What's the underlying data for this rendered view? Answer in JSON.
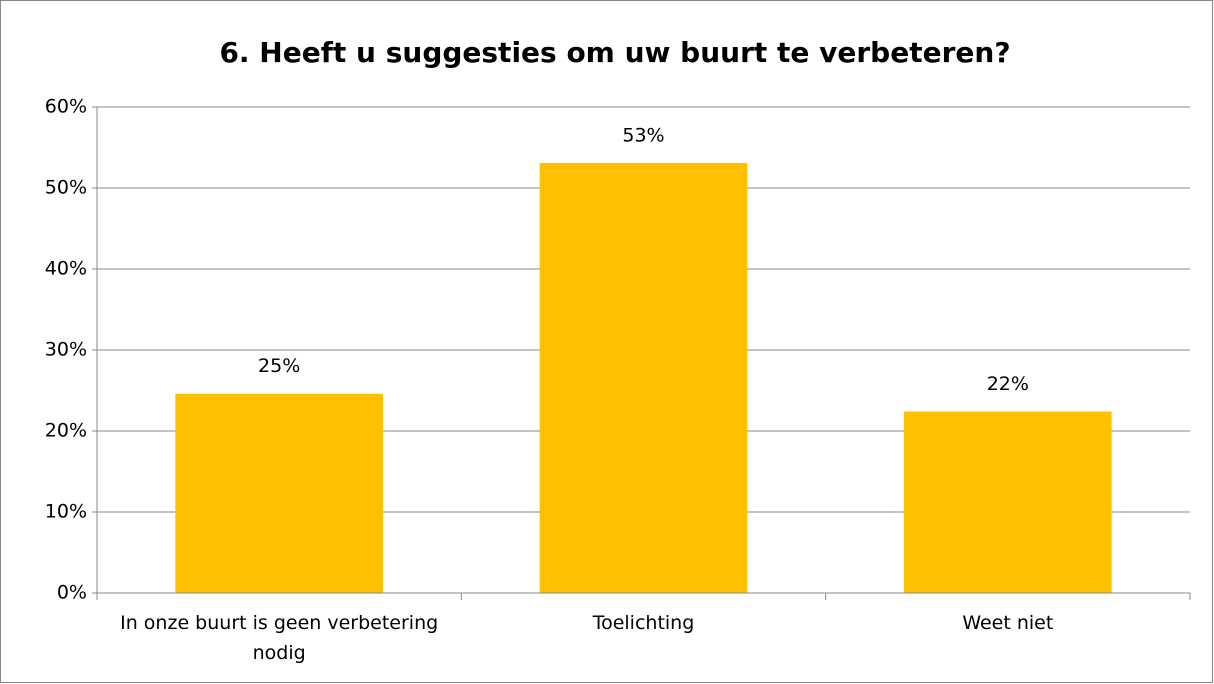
{
  "chart_data": {
    "type": "bar",
    "title": "6. Heeft u suggesties om uw buurt te verbeteren?",
    "categories": [
      "In onze buurt is geen verbetering nodig",
      "Toelichting",
      "Weet niet"
    ],
    "values": [
      24.6,
      53.1,
      22.4
    ],
    "value_labels": [
      "25%",
      "53%",
      "22%"
    ],
    "color": "#ffc000",
    "ylim": [
      0,
      60
    ],
    "yticks": [
      {
        "value": 0,
        "label": "0%"
      },
      {
        "value": 10,
        "label": "10%"
      },
      {
        "value": 20,
        "label": "20%"
      },
      {
        "value": 30,
        "label": "30%"
      },
      {
        "value": 40,
        "label": "40%"
      },
      {
        "value": 50,
        "label": "50%"
      },
      {
        "value": 60,
        "label": "60%"
      }
    ],
    "grid": true
  }
}
